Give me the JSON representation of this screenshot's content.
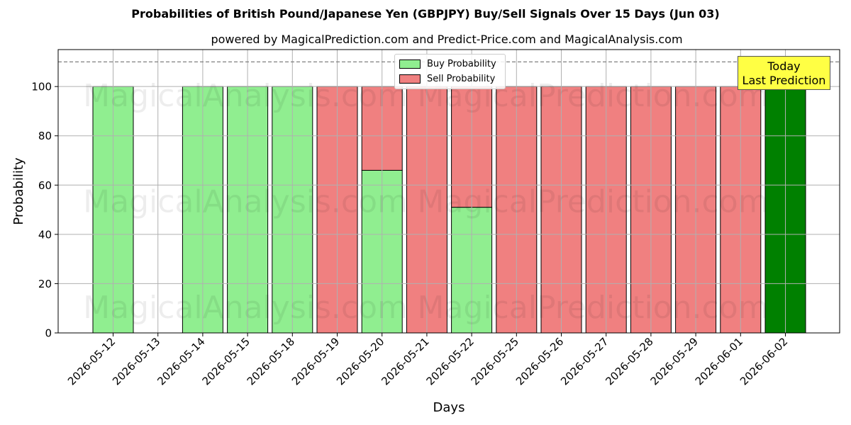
{
  "chart_data": {
    "type": "bar",
    "stacked": true,
    "title": "Probabilities of British Pound/Japanese Yen (GBPJPY) Buy/Sell Signals Over 15 Days (Jun 03)",
    "subtitle": "powered by MagicalPrediction.com and Predict-Price.com and MagicalAnalysis.com",
    "xlabel": "Days",
    "ylabel": "Probability",
    "ylim": [
      0,
      115
    ],
    "yticks": [
      0,
      20,
      40,
      60,
      80,
      100
    ],
    "reference_line": 110,
    "grid": true,
    "legend_position": "top-center",
    "categories": [
      "2026-05-12",
      "2026-05-13",
      "2026-05-14",
      "2026-05-15",
      "2026-05-18",
      "2026-05-19",
      "2026-05-20",
      "2026-05-21",
      "2026-05-22",
      "2026-05-25",
      "2026-05-26",
      "2026-05-27",
      "2026-05-28",
      "2026-05-29",
      "2026-06-01",
      "2026-06-02"
    ],
    "series": [
      {
        "name": "Buy Probability",
        "color": "#90ee90",
        "values": [
          100,
          0,
          100,
          100,
          100,
          0,
          66,
          0,
          51,
          0,
          0,
          0,
          0,
          0,
          0,
          100
        ]
      },
      {
        "name": "Sell Probability",
        "color": "#f08080",
        "values": [
          0,
          0,
          0,
          0,
          0,
          100,
          34,
          100,
          49,
          100,
          100,
          100,
          100,
          100,
          100,
          0
        ]
      }
    ],
    "highlight": {
      "category": "2026-06-02",
      "color": "#008000"
    },
    "annotation": {
      "line1": "Today",
      "line2": "Last Prediction"
    },
    "watermarks": [
      "MagicalAnalysis.com",
      "MagicalPrediction.com"
    ]
  }
}
